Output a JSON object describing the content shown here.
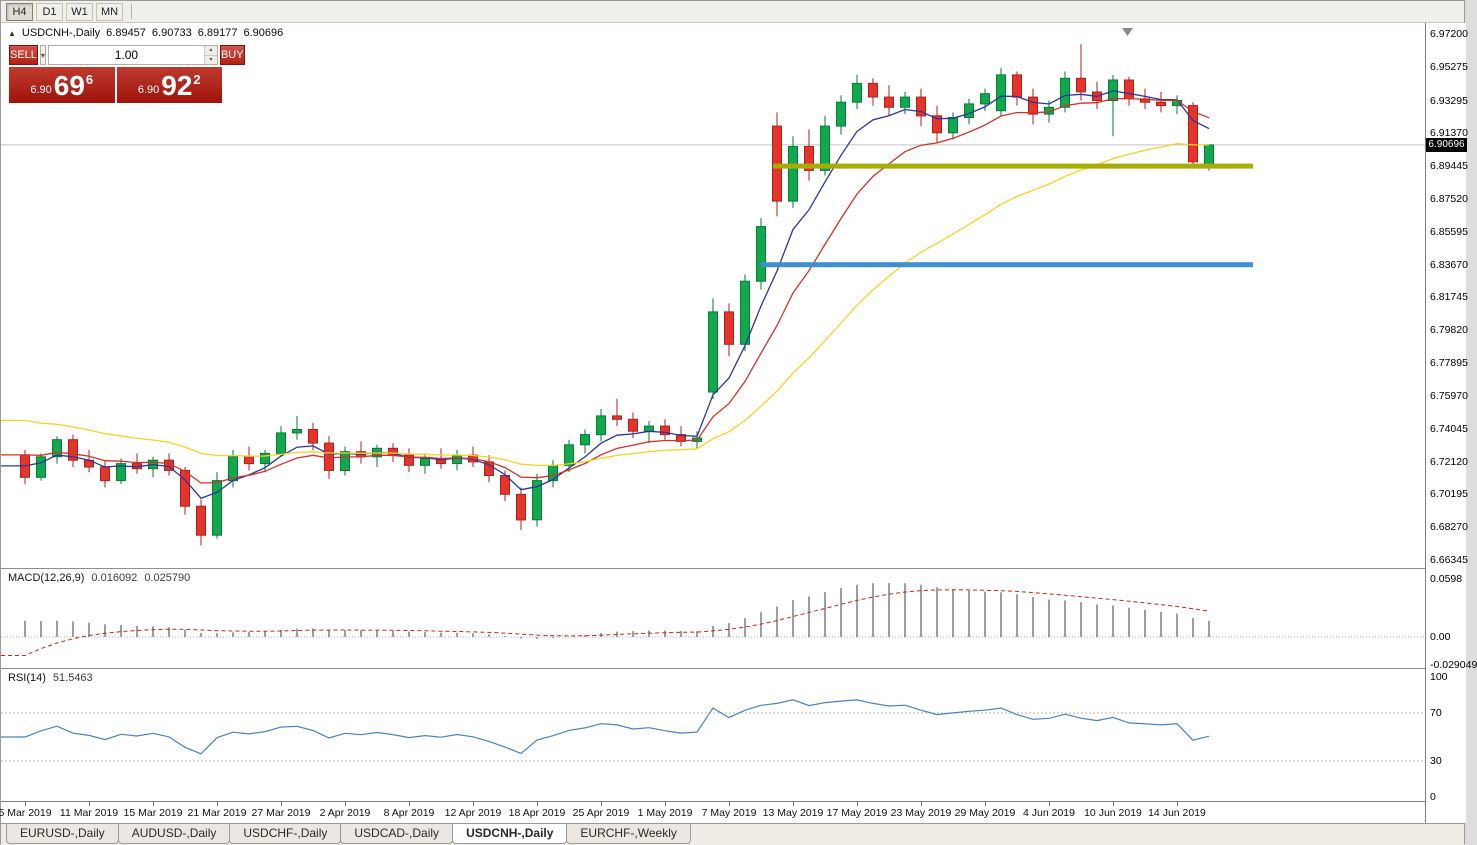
{
  "toolbar": {
    "periods": [
      "H4",
      "D1",
      "W1",
      "MN"
    ],
    "active_period": "H4"
  },
  "symbol_info": {
    "collapse_icon": "▲",
    "title": "USDCNH-,Daily",
    "open": "6.89457",
    "high": "6.90733",
    "low": "6.89177",
    "close": "6.90696"
  },
  "trade_panel": {
    "sell_label": "SELL",
    "buy_label": "BUY",
    "volume": "1.00",
    "dropdown_icon": "▾",
    "spin_up_icon": "▴",
    "spin_down_icon": "▾",
    "sell_price": {
      "prefix": "6.90",
      "big": "69",
      "sup": "6"
    },
    "buy_price": {
      "prefix": "6.90",
      "big": "92",
      "sup": "2"
    }
  },
  "price_scale": {
    "labels": [
      "6.97200",
      "6.95275",
      "6.93295",
      "6.91370",
      "6.89445",
      "6.87520",
      "6.85595",
      "6.83670",
      "6.81745",
      "6.79820",
      "6.77895",
      "6.75970",
      "6.74045",
      "6.72120",
      "6.70195",
      "6.68270",
      "6.66345"
    ],
    "current_price": "6.90696"
  },
  "macd": {
    "label": "MACD(12,26,9)",
    "value": "0.016092",
    "signal": "0.025790",
    "scale": [
      "0.0598",
      "0.00",
      "-0.029049"
    ]
  },
  "rsi": {
    "label": "RSI(14)",
    "value": "51.5463",
    "scale": [
      "100",
      "70",
      "30",
      "0"
    ],
    "levels": [
      70,
      30
    ]
  },
  "time_axis": {
    "labels": [
      "5 Mar 2019",
      "11 Mar 2019",
      "15 Mar 2019",
      "21 Mar 2019",
      "27 Mar 2019",
      "2 Apr 2019",
      "8 Apr 2019",
      "12 Apr 2019",
      "18 Apr 2019",
      "25 Apr 2019",
      "1 May 2019",
      "7 May 2019",
      "13 May 2019",
      "17 May 2019",
      "23 May 2019",
      "29 May 2019",
      "4 Jun 2019",
      "10 Jun 2019",
      "14 Jun 2019"
    ]
  },
  "tabs": {
    "items": [
      "EURUSD-,Daily",
      "AUDUSD-,Daily",
      "USDCHF-,Daily",
      "USDCAD-,Daily",
      "USDCNH-,Daily",
      "EURCHF-,Weekly"
    ],
    "active": "USDCNH-,Daily"
  },
  "colors": {
    "bull": "#11a84e",
    "bull_border": "#0a7a36",
    "bear": "#e5342b",
    "bear_border": "#ab231c",
    "ma_fast": "#2a36a0",
    "ma_mid": "#d23228",
    "ma_slow": "#f5d328",
    "hline_olive": "#a5ad06",
    "hline_blue": "#3f8fd2",
    "macd_hist": "#9e9e9e",
    "macd_signal": "#cc2222",
    "rsi_line": "#4a82bd",
    "tile_red": "#a61b12"
  },
  "chart_data": {
    "type": "candlestick",
    "symbol": "USDCNH-",
    "timeframe": "Daily",
    "y_range": {
      "top": 6.972,
      "bottom": 6.66345
    },
    "ma_overlays": [
      {
        "name": "fast",
        "period": 5,
        "color": "#2a36a0",
        "seed": 6.722
      },
      {
        "name": "mid",
        "period": 10,
        "color": "#d23228",
        "seed": 6.728
      },
      {
        "name": "slow",
        "period": 26,
        "color": "#f5d328",
        "seed": 6.748
      }
    ],
    "hlines": [
      {
        "name": "resistance-line-olive",
        "price": 6.8945,
        "color": "#a5ad06",
        "width": 5,
        "x1": 772,
        "x2": 1252
      },
      {
        "name": "support-line-blue",
        "price": 6.8367,
        "color": "#3f8fd2",
        "width": 5,
        "x1": 760,
        "x2": 1252
      }
    ],
    "macd_params": {
      "fast": 12,
      "slow": 26,
      "signal": 9,
      "slow_seed_offset": 0.018,
      "signal_seed": -0.028
    },
    "rsi_params": {
      "period": 14
    },
    "candles": [
      {
        "t": "5 Mar",
        "o": 6.725,
        "h": 6.728,
        "l": 6.708,
        "c": 6.712
      },
      {
        "t": "6 Mar",
        "o": 6.712,
        "h": 6.726,
        "l": 6.71,
        "c": 6.724
      },
      {
        "t": "7 Mar",
        "o": 6.724,
        "h": 6.736,
        "l": 6.72,
        "c": 6.734
      },
      {
        "t": "8 Mar",
        "o": 6.734,
        "h": 6.737,
        "l": 6.718,
        "c": 6.722
      },
      {
        "t": "11 Mar",
        "o": 6.722,
        "h": 6.728,
        "l": 6.715,
        "c": 6.718
      },
      {
        "t": "12 Mar",
        "o": 6.718,
        "h": 6.722,
        "l": 6.706,
        "c": 6.71
      },
      {
        "t": "13 Mar",
        "o": 6.71,
        "h": 6.723,
        "l": 6.708,
        "c": 6.72
      },
      {
        "t": "14 Mar",
        "o": 6.72,
        "h": 6.726,
        "l": 6.714,
        "c": 6.717
      },
      {
        "t": "15 Mar",
        "o": 6.717,
        "h": 6.724,
        "l": 6.712,
        "c": 6.722
      },
      {
        "t": "18 Mar",
        "o": 6.722,
        "h": 6.726,
        "l": 6.713,
        "c": 6.716
      },
      {
        "t": "19 Mar",
        "o": 6.716,
        "h": 6.718,
        "l": 6.69,
        "c": 6.695
      },
      {
        "t": "20 Mar",
        "o": 6.695,
        "h": 6.699,
        "l": 6.672,
        "c": 6.678
      },
      {
        "t": "21 Mar",
        "o": 6.678,
        "h": 6.715,
        "l": 6.676,
        "c": 6.71
      },
      {
        "t": "22 Mar",
        "o": 6.71,
        "h": 6.728,
        "l": 6.706,
        "c": 6.724
      },
      {
        "t": "25 Mar",
        "o": 6.724,
        "h": 6.73,
        "l": 6.716,
        "c": 6.72
      },
      {
        "t": "26 Mar",
        "o": 6.72,
        "h": 6.728,
        "l": 6.715,
        "c": 6.726
      },
      {
        "t": "27 Mar",
        "o": 6.726,
        "h": 6.742,
        "l": 6.724,
        "c": 6.738
      },
      {
        "t": "28 Mar",
        "o": 6.738,
        "h": 6.748,
        "l": 6.734,
        "c": 6.74
      },
      {
        "t": "29 Mar",
        "o": 6.74,
        "h": 6.744,
        "l": 6.728,
        "c": 6.732
      },
      {
        "t": "1 Apr",
        "o": 6.732,
        "h": 6.736,
        "l": 6.711,
        "c": 6.716
      },
      {
        "t": "2 Apr",
        "o": 6.716,
        "h": 6.73,
        "l": 6.713,
        "c": 6.727
      },
      {
        "t": "3 Apr",
        "o": 6.727,
        "h": 6.733,
        "l": 6.72,
        "c": 6.724
      },
      {
        "t": "4 Apr",
        "o": 6.724,
        "h": 6.731,
        "l": 6.718,
        "c": 6.729
      },
      {
        "t": "5 Apr",
        "o": 6.729,
        "h": 6.732,
        "l": 6.721,
        "c": 6.725
      },
      {
        "t": "8 Apr",
        "o": 6.725,
        "h": 6.729,
        "l": 6.715,
        "c": 6.719
      },
      {
        "t": "9 Apr",
        "o": 6.719,
        "h": 6.726,
        "l": 6.714,
        "c": 6.723
      },
      {
        "t": "10 Apr",
        "o": 6.723,
        "h": 6.729,
        "l": 6.717,
        "c": 6.72
      },
      {
        "t": "11 Apr",
        "o": 6.72,
        "h": 6.728,
        "l": 6.716,
        "c": 6.725
      },
      {
        "t": "12 Apr",
        "o": 6.725,
        "h": 6.73,
        "l": 6.718,
        "c": 6.721
      },
      {
        "t": "15 Apr",
        "o": 6.721,
        "h": 6.725,
        "l": 6.709,
        "c": 6.713
      },
      {
        "t": "16 Apr",
        "o": 6.713,
        "h": 6.716,
        "l": 6.698,
        "c": 6.702
      },
      {
        "t": "17 Apr",
        "o": 6.702,
        "h": 6.706,
        "l": 6.681,
        "c": 6.687
      },
      {
        "t": "18 Apr",
        "o": 6.687,
        "h": 6.714,
        "l": 6.683,
        "c": 6.71
      },
      {
        "t": "22 Apr",
        "o": 6.71,
        "h": 6.722,
        "l": 6.706,
        "c": 6.719
      },
      {
        "t": "23 Apr",
        "o": 6.719,
        "h": 6.734,
        "l": 6.715,
        "c": 6.731
      },
      {
        "t": "24 Apr",
        "o": 6.731,
        "h": 6.74,
        "l": 6.726,
        "c": 6.737
      },
      {
        "t": "25 Apr",
        "o": 6.737,
        "h": 6.752,
        "l": 6.733,
        "c": 6.748
      },
      {
        "t": "26 Apr",
        "o": 6.748,
        "h": 6.758,
        "l": 6.742,
        "c": 6.746
      },
      {
        "t": "29 Apr",
        "o": 6.746,
        "h": 6.75,
        "l": 6.735,
        "c": 6.739
      },
      {
        "t": "30 Apr",
        "o": 6.739,
        "h": 6.745,
        "l": 6.732,
        "c": 6.742
      },
      {
        "t": "1 May",
        "o": 6.742,
        "h": 6.746,
        "l": 6.734,
        "c": 6.737
      },
      {
        "t": "2 May",
        "o": 6.737,
        "h": 6.742,
        "l": 6.73,
        "c": 6.733
      },
      {
        "t": "3 May",
        "o": 6.733,
        "h": 6.739,
        "l": 6.729,
        "c": 6.735
      },
      {
        "t": "6 May",
        "o": 6.762,
        "h": 6.817,
        "l": 6.758,
        "c": 6.809
      },
      {
        "t": "7 May",
        "o": 6.809,
        "h": 6.814,
        "l": 6.783,
        "c": 6.79
      },
      {
        "t": "8 May",
        "o": 6.79,
        "h": 6.831,
        "l": 6.786,
        "c": 6.827
      },
      {
        "t": "9 May",
        "o": 6.827,
        "h": 6.864,
        "l": 6.822,
        "c": 6.859
      },
      {
        "t": "10 May",
        "o": 6.918,
        "h": 6.926,
        "l": 6.865,
        "c": 6.874
      },
      {
        "t": "13 May",
        "o": 6.874,
        "h": 6.912,
        "l": 6.87,
        "c": 6.906
      },
      {
        "t": "14 May",
        "o": 6.906,
        "h": 6.916,
        "l": 6.886,
        "c": 6.892
      },
      {
        "t": "15 May",
        "o": 6.892,
        "h": 6.924,
        "l": 6.889,
        "c": 6.918
      },
      {
        "t": "16 May",
        "o": 6.918,
        "h": 6.936,
        "l": 6.913,
        "c": 6.932
      },
      {
        "t": "17 May",
        "o": 6.932,
        "h": 6.948,
        "l": 6.928,
        "c": 6.943
      },
      {
        "t": "20 May",
        "o": 6.943,
        "h": 6.946,
        "l": 6.93,
        "c": 6.935
      },
      {
        "t": "21 May",
        "o": 6.935,
        "h": 6.942,
        "l": 6.924,
        "c": 6.929
      },
      {
        "t": "22 May",
        "o": 6.929,
        "h": 6.938,
        "l": 6.925,
        "c": 6.935
      },
      {
        "t": "23 May",
        "o": 6.935,
        "h": 6.94,
        "l": 6.918,
        "c": 6.924
      },
      {
        "t": "24 May",
        "o": 6.924,
        "h": 6.93,
        "l": 6.908,
        "c": 6.914
      },
      {
        "t": "27 May",
        "o": 6.914,
        "h": 6.926,
        "l": 6.91,
        "c": 6.923
      },
      {
        "t": "28 May",
        "o": 6.923,
        "h": 6.934,
        "l": 6.919,
        "c": 6.931
      },
      {
        "t": "29 May",
        "o": 6.931,
        "h": 6.94,
        "l": 6.927,
        "c": 6.937
      },
      {
        "t": "30 May",
        "o": 6.927,
        "h": 6.952,
        "l": 6.924,
        "c": 6.948
      },
      {
        "t": "31 May",
        "o": 6.948,
        "h": 6.95,
        "l": 6.93,
        "c": 6.935
      },
      {
        "t": "3 Jun",
        "o": 6.935,
        "h": 6.94,
        "l": 6.919,
        "c": 6.925
      },
      {
        "t": "4 Jun",
        "o": 6.925,
        "h": 6.933,
        "l": 6.92,
        "c": 6.929
      },
      {
        "t": "5 Jun",
        "o": 6.929,
        "h": 6.95,
        "l": 6.926,
        "c": 6.946
      },
      {
        "t": "6 Jun",
        "o": 6.946,
        "h": 6.966,
        "l": 6.933,
        "c": 6.938
      },
      {
        "t": "7 Jun",
        "o": 6.938,
        "h": 6.944,
        "l": 6.928,
        "c": 6.933
      },
      {
        "t": "10 Jun",
        "o": 6.933,
        "h": 6.948,
        "l": 6.912,
        "c": 6.945
      },
      {
        "t": "11 Jun",
        "o": 6.945,
        "h": 6.947,
        "l": 6.93,
        "c": 6.934
      },
      {
        "t": "12 Jun",
        "o": 6.934,
        "h": 6.94,
        "l": 6.928,
        "c": 6.932
      },
      {
        "t": "13 Jun",
        "o": 6.932,
        "h": 6.938,
        "l": 6.926,
        "c": 6.93
      },
      {
        "t": "14 Jun",
        "o": 6.93,
        "h": 6.936,
        "l": 6.925,
        "c": 6.933
      },
      {
        "t": "17 Jun",
        "o": 6.93,
        "h": 6.932,
        "l": 6.893,
        "c": 6.897
      },
      {
        "t": "18 Jun",
        "o": 6.89457,
        "h": 6.90733,
        "l": 6.89177,
        "c": 6.90696
      }
    ]
  }
}
